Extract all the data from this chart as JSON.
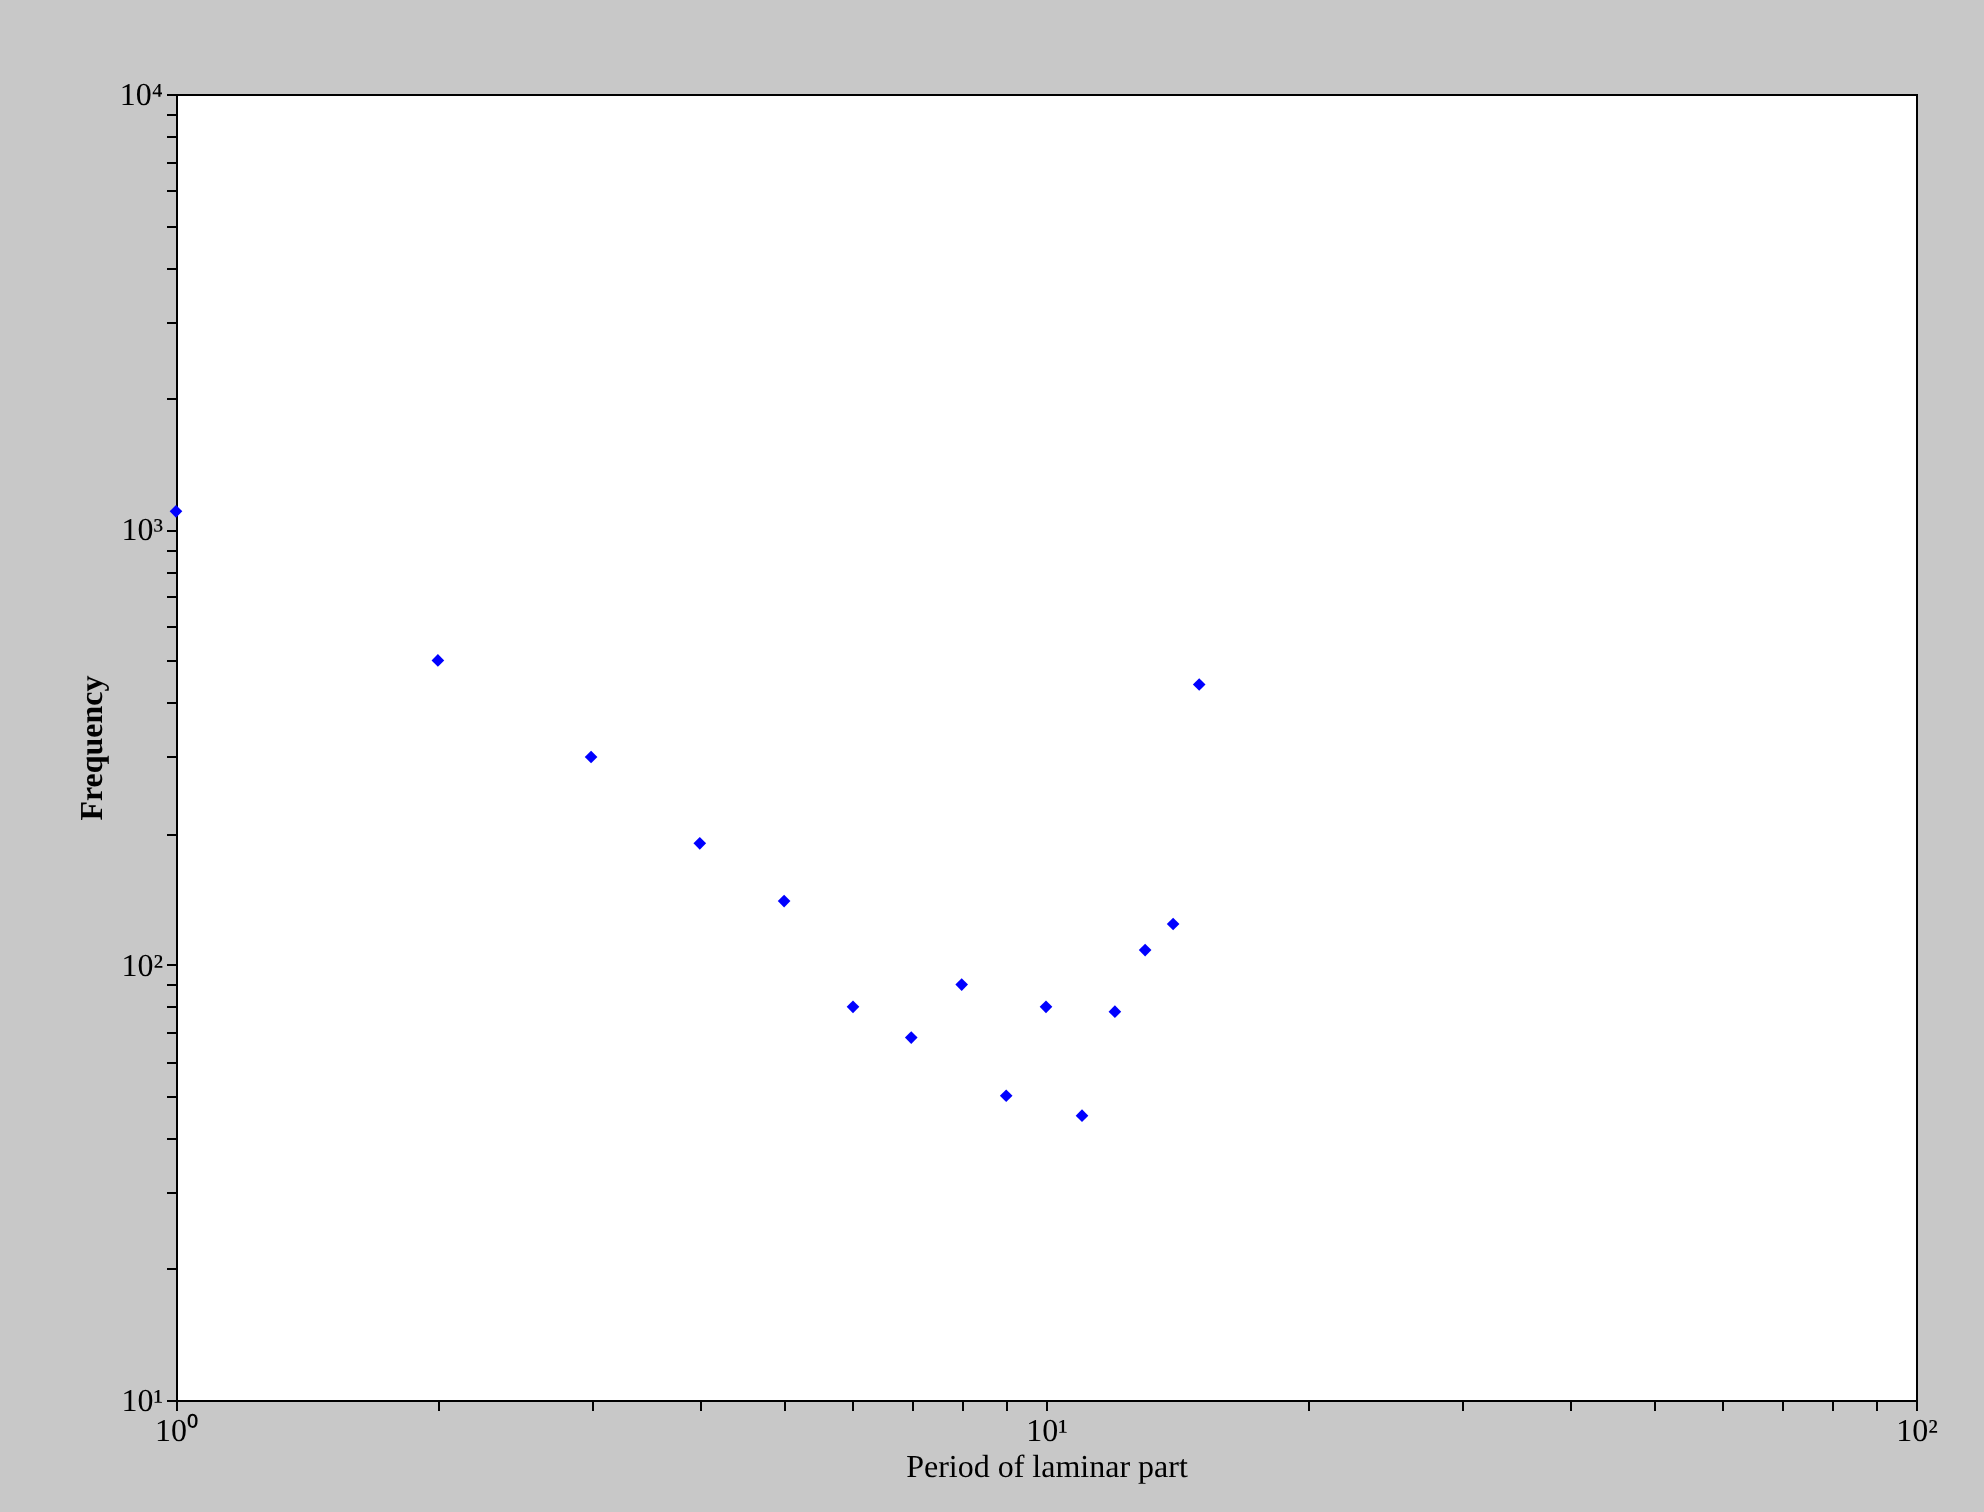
{
  "chart_data": {
    "type": "scatter",
    "xlabel": "Period of laminar part",
    "ylabel": "Frequency",
    "log": "xy",
    "grid": false,
    "marker": "diamond",
    "x": [
      1,
      2,
      3,
      4,
      5,
      6,
      7,
      8,
      9,
      10,
      11,
      12,
      13,
      14,
      15
    ],
    "series": [
      {
        "color": "#0000ff",
        "values": [
          1100,
          500,
          300,
          190,
          140,
          80,
          68,
          90,
          50,
          80,
          45,
          78,
          108,
          124,
          440
        ]
      }
    ],
    "xlim": [
      1,
      100
    ],
    "ylim": [
      10,
      10000
    ],
    "xticks": [
      {
        "value": 1,
        "label": "10⁰"
      },
      {
        "value": 2,
        "label": null
      },
      {
        "value": 3,
        "label": null
      },
      {
        "value": 4,
        "label": null
      },
      {
        "value": 5,
        "label": null
      },
      {
        "value": 6,
        "label": null
      },
      {
        "value": 7,
        "label": null
      },
      {
        "value": 8,
        "label": null
      },
      {
        "value": 9,
        "label": null
      },
      {
        "value": 10,
        "label": "10¹"
      },
      {
        "value": 20,
        "label": null
      },
      {
        "value": 30,
        "label": null
      },
      {
        "value": 40,
        "label": null
      },
      {
        "value": 50,
        "label": null
      },
      {
        "value": 60,
        "label": null
      },
      {
        "value": 70,
        "label": null
      },
      {
        "value": 80,
        "label": null
      },
      {
        "value": 90,
        "label": null
      },
      {
        "value": 100,
        "label": "10²"
      }
    ],
    "yticks": [
      {
        "value": 10,
        "label": "10¹"
      },
      {
        "value": 20,
        "label": null
      },
      {
        "value": 30,
        "label": null
      },
      {
        "value": 40,
        "label": null
      },
      {
        "value": 50,
        "label": null
      },
      {
        "value": 60,
        "label": null
      },
      {
        "value": 70,
        "label": null
      },
      {
        "value": 80,
        "label": null
      },
      {
        "value": 90,
        "label": null
      },
      {
        "value": 100,
        "label": "10²"
      },
      {
        "value": 200,
        "label": null
      },
      {
        "value": 300,
        "label": null
      },
      {
        "value": 400,
        "label": null
      },
      {
        "value": 500,
        "label": null
      },
      {
        "value": 600,
        "label": null
      },
      {
        "value": 700,
        "label": null
      },
      {
        "value": 800,
        "label": null
      },
      {
        "value": 900,
        "label": null
      },
      {
        "value": 1000,
        "label": "10³"
      },
      {
        "value": 2000,
        "label": null
      },
      {
        "value": 3000,
        "label": null
      },
      {
        "value": 4000,
        "label": null
      },
      {
        "value": 5000,
        "label": null
      },
      {
        "value": 6000,
        "label": null
      },
      {
        "value": 7000,
        "label": null
      },
      {
        "value": 8000,
        "label": null
      },
      {
        "value": 9000,
        "label": null
      },
      {
        "value": 10000,
        "label": "10⁴"
      }
    ]
  }
}
